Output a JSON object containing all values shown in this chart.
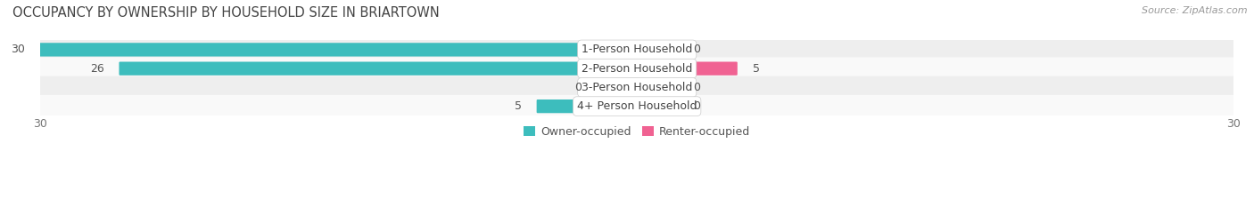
{
  "title": "OCCUPANCY BY OWNERSHIP BY HOUSEHOLD SIZE IN BRIARTOWN",
  "source": "Source: ZipAtlas.com",
  "categories": [
    "1-Person Household",
    "2-Person Household",
    "3-Person Household",
    "4+ Person Household"
  ],
  "owner_values": [
    30,
    26,
    0,
    5
  ],
  "renter_values": [
    0,
    5,
    0,
    0
  ],
  "owner_color": "#3dbdbd",
  "renter_color": "#f06292",
  "renter_placeholder_color": "#f8bbd0",
  "owner_placeholder_color": "#b2dfdb",
  "row_bg_colors": [
    "#eeeeee",
    "#f9f9f9",
    "#eeeeee",
    "#f9f9f9"
  ],
  "xlim": 30,
  "placeholder_size": 2,
  "legend_owner": "Owner-occupied",
  "legend_renter": "Renter-occupied",
  "title_fontsize": 10.5,
  "label_fontsize": 9,
  "tick_fontsize": 9,
  "source_fontsize": 8
}
